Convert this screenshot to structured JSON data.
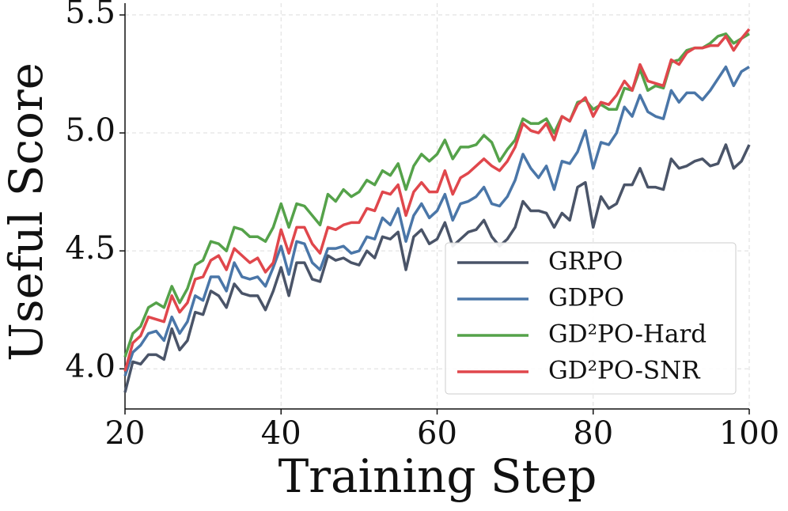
{
  "chart_data": {
    "type": "line",
    "xlabel": "Training Step",
    "ylabel": "Useful Score",
    "x": [
      20,
      21,
      22,
      23,
      24,
      25,
      26,
      27,
      28,
      29,
      30,
      31,
      32,
      33,
      34,
      35,
      36,
      37,
      38,
      39,
      40,
      41,
      42,
      43,
      44,
      45,
      46,
      47,
      48,
      49,
      50,
      51,
      52,
      53,
      54,
      55,
      56,
      57,
      58,
      59,
      60,
      61,
      62,
      63,
      64,
      65,
      66,
      67,
      68,
      69,
      70,
      71,
      72,
      73,
      74,
      75,
      76,
      77,
      78,
      79,
      80,
      81,
      82,
      83,
      84,
      85,
      86,
      87,
      88,
      89,
      90,
      91,
      92,
      93,
      94,
      95,
      96,
      97,
      98,
      99,
      100
    ],
    "series": [
      {
        "name": "GRPO",
        "color": "#4a5468",
        "values": [
          3.9,
          4.03,
          4.02,
          4.06,
          4.06,
          4.04,
          4.17,
          4.08,
          4.12,
          4.24,
          4.23,
          4.33,
          4.31,
          4.26,
          4.36,
          4.32,
          4.31,
          4.31,
          4.25,
          4.33,
          4.43,
          4.31,
          4.45,
          4.45,
          4.38,
          4.37,
          4.48,
          4.46,
          4.47,
          4.45,
          4.44,
          4.5,
          4.47,
          4.56,
          4.55,
          4.58,
          4.42,
          4.56,
          4.59,
          4.53,
          4.55,
          4.62,
          4.52,
          4.55,
          4.58,
          4.59,
          4.63,
          4.56,
          4.52,
          4.55,
          4.6,
          4.71,
          4.67,
          4.67,
          4.66,
          4.6,
          4.66,
          4.63,
          4.77,
          4.79,
          4.6,
          4.73,
          4.68,
          4.7,
          4.78,
          4.78,
          4.85,
          4.77,
          4.77,
          4.76,
          4.89,
          4.85,
          4.86,
          4.88,
          4.89,
          4.86,
          4.87,
          4.95,
          4.85,
          4.88,
          4.95
        ]
      },
      {
        "name": "GDPO",
        "color": "#4a76a8",
        "values": [
          3.97,
          4.07,
          4.1,
          4.15,
          4.16,
          4.12,
          4.22,
          4.15,
          4.2,
          4.31,
          4.29,
          4.39,
          4.39,
          4.33,
          4.45,
          4.39,
          4.38,
          4.39,
          4.35,
          4.43,
          4.52,
          4.4,
          4.54,
          4.53,
          4.45,
          4.42,
          4.51,
          4.51,
          4.52,
          4.49,
          4.5,
          4.56,
          4.55,
          4.64,
          4.61,
          4.68,
          4.54,
          4.65,
          4.7,
          4.64,
          4.67,
          4.74,
          4.63,
          4.7,
          4.71,
          4.73,
          4.77,
          4.7,
          4.69,
          4.73,
          4.8,
          4.91,
          4.85,
          4.81,
          4.86,
          4.76,
          4.88,
          4.87,
          4.92,
          5.01,
          4.85,
          4.96,
          4.95,
          5.0,
          5.11,
          5.07,
          5.16,
          5.09,
          5.07,
          5.06,
          5.18,
          5.13,
          5.17,
          5.17,
          5.14,
          5.18,
          5.23,
          5.28,
          5.2,
          5.26,
          5.28
        ]
      },
      {
        "name": "GD²PO-Hard",
        "color": "#55a24a",
        "values": [
          4.05,
          4.15,
          4.18,
          4.26,
          4.28,
          4.26,
          4.35,
          4.28,
          4.34,
          4.44,
          4.46,
          4.54,
          4.53,
          4.5,
          4.6,
          4.59,
          4.56,
          4.56,
          4.54,
          4.6,
          4.7,
          4.6,
          4.7,
          4.69,
          4.65,
          4.61,
          4.74,
          4.71,
          4.76,
          4.73,
          4.75,
          4.8,
          4.78,
          4.84,
          4.82,
          4.87,
          4.76,
          4.86,
          4.91,
          4.88,
          4.91,
          4.97,
          4.89,
          4.94,
          4.94,
          4.95,
          4.99,
          4.96,
          4.88,
          4.93,
          4.97,
          5.06,
          5.04,
          5.04,
          5.06,
          5.0,
          5.07,
          5.05,
          5.13,
          5.14,
          5.1,
          5.12,
          5.1,
          5.1,
          5.19,
          5.18,
          5.27,
          5.18,
          5.2,
          5.19,
          5.3,
          5.31,
          5.35,
          5.36,
          5.36,
          5.38,
          5.41,
          5.42,
          5.38,
          5.4,
          5.42
        ]
      },
      {
        "name": "GD²PO-SNR",
        "color": "#e0474c",
        "values": [
          3.99,
          4.11,
          4.14,
          4.22,
          4.21,
          4.2,
          4.31,
          4.24,
          4.28,
          4.38,
          4.39,
          4.46,
          4.48,
          4.42,
          4.51,
          4.48,
          4.45,
          4.47,
          4.41,
          4.45,
          4.59,
          4.49,
          4.6,
          4.6,
          4.53,
          4.49,
          4.6,
          4.59,
          4.61,
          4.62,
          4.62,
          4.68,
          4.67,
          4.75,
          4.74,
          4.78,
          4.65,
          4.75,
          4.79,
          4.75,
          4.75,
          4.84,
          4.74,
          4.81,
          4.83,
          4.86,
          4.89,
          4.86,
          4.84,
          4.88,
          4.94,
          5.04,
          5.01,
          5.0,
          5.04,
          4.97,
          5.07,
          5.05,
          5.12,
          5.15,
          5.07,
          5.13,
          5.12,
          5.16,
          5.22,
          5.18,
          5.29,
          5.22,
          5.21,
          5.2,
          5.31,
          5.29,
          5.34,
          5.36,
          5.36,
          5.37,
          5.37,
          5.41,
          5.35,
          5.4,
          5.44
        ]
      }
    ],
    "xlim": [
      20,
      100
    ],
    "ylim": [
      3.83,
      5.55
    ],
    "xticks": [
      20,
      40,
      60,
      80,
      100
    ],
    "yticks": [
      {
        "value": 4,
        "label": "4.0"
      },
      4.5,
      {
        "value": 5,
        "label": "5.0"
      },
      5.5
    ],
    "grid": true,
    "legend": "lower right"
  }
}
